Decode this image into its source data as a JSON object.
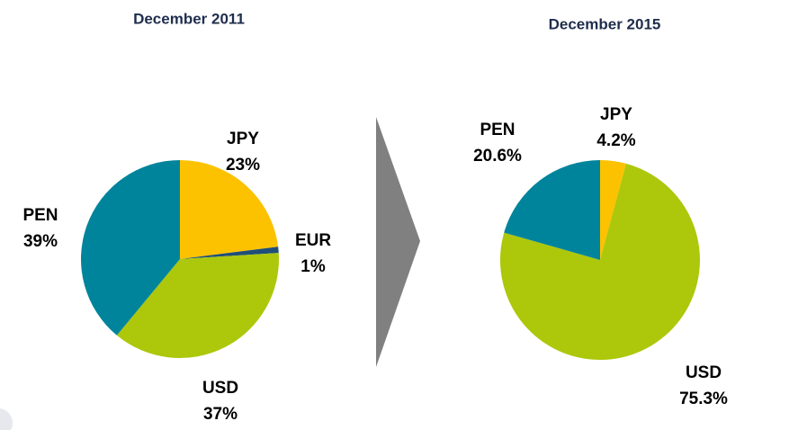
{
  "chart_data": [
    {
      "type": "pie",
      "title": "December 2011",
      "categories": [
        "JPY",
        "EUR",
        "USD",
        "PEN"
      ],
      "values": [
        23,
        1,
        37,
        39
      ],
      "value_labels": [
        "23%",
        "1%",
        "37%",
        "39%"
      ],
      "colors": [
        "#fcc200",
        "#1f4e79",
        "#adc70b",
        "#00849c"
      ]
    },
    {
      "type": "pie",
      "title": "December 2015",
      "categories": [
        "JPY",
        "USD",
        "PEN"
      ],
      "values": [
        4.2,
        75.3,
        20.6
      ],
      "value_labels": [
        "4.2%",
        "75.3%",
        "20.6%"
      ],
      "colors": [
        "#fcc200",
        "#adc70b",
        "#00849c"
      ]
    }
  ]
}
